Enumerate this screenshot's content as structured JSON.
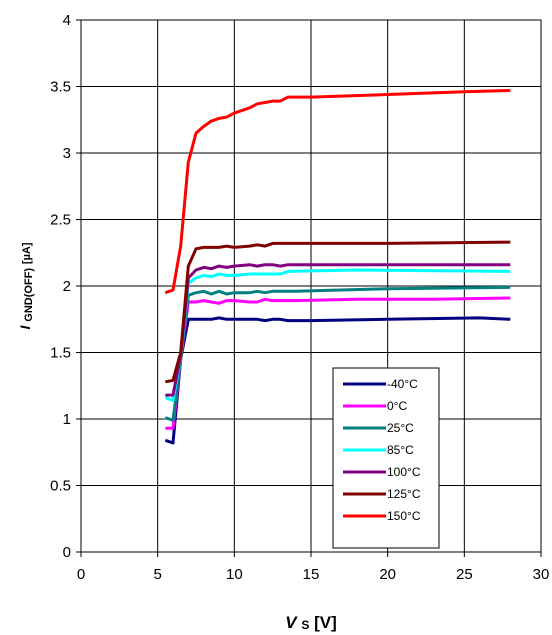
{
  "chart_data": {
    "type": "line",
    "xlim": [
      0,
      30
    ],
    "ylim": [
      0,
      4
    ],
    "xticks": [
      "0",
      "5",
      "10",
      "15",
      "20",
      "25",
      "30"
    ],
    "yticks": [
      "0",
      "0.5",
      "1",
      "1.5",
      "2",
      "2.5",
      "3",
      "3.5",
      "4"
    ],
    "xlabel": {
      "main": "V",
      "sub": "S",
      "unit": " [V]"
    },
    "ylabel": {
      "main": "I",
      "sub": "GND(OFF)",
      "unit": " [µA]"
    },
    "grid": true,
    "legend_position": "bottom-right",
    "series": [
      {
        "name": "-40°C",
        "color": "#000080",
        "x": [
          5.5,
          6.0,
          6.5,
          7.0,
          7.5,
          8.0,
          8.5,
          9.0,
          9.5,
          10.0,
          11.0,
          11.5,
          12.0,
          12.5,
          13.0,
          13.5,
          15.0,
          20.0,
          26.0,
          28.0
        ],
        "y": [
          0.84,
          0.82,
          1.45,
          1.75,
          1.75,
          1.75,
          1.75,
          1.76,
          1.75,
          1.75,
          1.75,
          1.75,
          1.74,
          1.75,
          1.75,
          1.74,
          1.74,
          1.75,
          1.76,
          1.75
        ]
      },
      {
        "name": "0°C",
        "color": "#ff00ff",
        "x": [
          5.5,
          6.0,
          6.5,
          7.0,
          7.5,
          8.0,
          8.5,
          9.0,
          9.5,
          10.0,
          11.0,
          11.5,
          12.0,
          12.5,
          13.0,
          14.0,
          18.0,
          23.0,
          28.0
        ],
        "y": [
          0.93,
          0.93,
          1.45,
          1.88,
          1.88,
          1.89,
          1.88,
          1.87,
          1.89,
          1.89,
          1.88,
          1.88,
          1.9,
          1.89,
          1.89,
          1.89,
          1.9,
          1.9,
          1.91
        ]
      },
      {
        "name": "25°C",
        "color": "#008080",
        "x": [
          5.5,
          6.0,
          6.5,
          7.0,
          7.5,
          8.0,
          8.5,
          9.0,
          9.5,
          10.0,
          11.0,
          11.5,
          12.0,
          12.5,
          13.0,
          14.0,
          20.0,
          28.0
        ],
        "y": [
          1.01,
          0.99,
          1.45,
          1.93,
          1.95,
          1.96,
          1.94,
          1.96,
          1.94,
          1.95,
          1.95,
          1.96,
          1.95,
          1.96,
          1.96,
          1.96,
          1.98,
          1.99
        ]
      },
      {
        "name": "85°C",
        "color": "#00ffff",
        "x": [
          5.5,
          6.0,
          6.5,
          7.0,
          7.5,
          8.0,
          8.5,
          9.0,
          9.5,
          10.0,
          11.0,
          11.5,
          12.0,
          12.5,
          13.0,
          13.5,
          18.0,
          28.0
        ],
        "y": [
          1.16,
          1.14,
          1.47,
          2.02,
          2.06,
          2.08,
          2.07,
          2.09,
          2.08,
          2.08,
          2.09,
          2.09,
          2.09,
          2.09,
          2.09,
          2.11,
          2.12,
          2.11
        ]
      },
      {
        "name": "100°C",
        "color": "#800080",
        "x": [
          5.5,
          6.0,
          6.5,
          7.0,
          7.5,
          8.0,
          8.5,
          9.0,
          9.5,
          10.0,
          11.0,
          11.5,
          12.0,
          12.5,
          13.0,
          13.5,
          20.0,
          28.0
        ],
        "y": [
          1.18,
          1.18,
          1.48,
          2.06,
          2.12,
          2.14,
          2.13,
          2.15,
          2.14,
          2.15,
          2.16,
          2.15,
          2.16,
          2.16,
          2.15,
          2.16,
          2.16,
          2.16
        ]
      },
      {
        "name": "125°C",
        "color": "#800000",
        "x": [
          5.5,
          6.0,
          6.5,
          7.0,
          7.5,
          8.0,
          8.5,
          9.0,
          9.5,
          10.0,
          11.0,
          11.5,
          12.0,
          12.5,
          13.0,
          14.0,
          20.0,
          28.0
        ],
        "y": [
          1.28,
          1.29,
          1.5,
          2.15,
          2.28,
          2.29,
          2.29,
          2.29,
          2.3,
          2.29,
          2.3,
          2.31,
          2.3,
          2.32,
          2.32,
          2.32,
          2.32,
          2.33
        ]
      },
      {
        "name": "150°C",
        "color": "#ff0000",
        "x": [
          5.5,
          6.0,
          6.5,
          7.0,
          7.5,
          8.0,
          8.5,
          9.0,
          9.5,
          10.0,
          10.5,
          11.0,
          11.5,
          12.0,
          12.5,
          13.0,
          13.5,
          15.0,
          20.0,
          25.0,
          28.0
        ],
        "y": [
          1.95,
          1.97,
          2.3,
          2.93,
          3.15,
          3.2,
          3.24,
          3.26,
          3.27,
          3.3,
          3.32,
          3.34,
          3.37,
          3.38,
          3.39,
          3.39,
          3.42,
          3.42,
          3.44,
          3.46,
          3.47
        ]
      }
    ]
  }
}
